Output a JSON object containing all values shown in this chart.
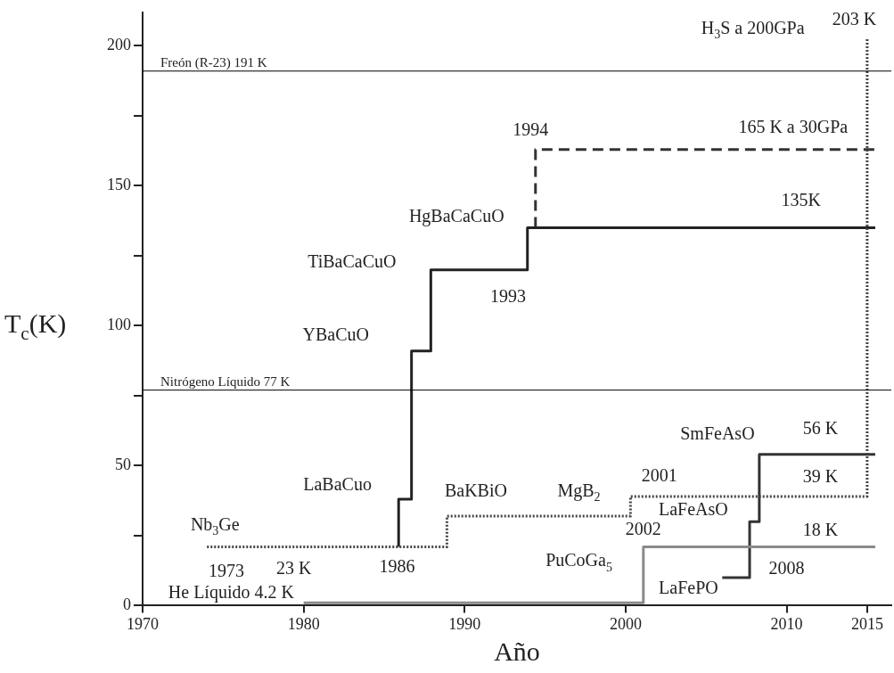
{
  "chart_data": {
    "type": "line",
    "xlabel": "Año",
    "ylabel": "T$_{c}$(K)",
    "xlim": [
      1970,
      2016.5
    ],
    "xticks": [
      1970,
      1980,
      1990,
      2000,
      2010,
      2015
    ],
    "ylim": [
      0,
      212
    ],
    "yticks": [
      0,
      {
        "value": 25,
        "label": null
      },
      50,
      {
        "value": 75,
        "label": null
      },
      100,
      {
        "value": 125,
        "label": null
      },
      150,
      {
        "value": 175,
        "label": null
      },
      200
    ],
    "grid": false,
    "marker": "none",
    "series": [
      {
        "color": "#444444",
        "line_style": "dotted",
        "x": [
          1974,
          1988.9,
          1988.9,
          2000.3,
          2000.3,
          2015,
          2015
        ],
        "values": [
          21,
          21,
          32,
          32,
          39,
          39,
          203
        ]
      },
      {
        "color": "#8a8a8a",
        "line_style": "solid",
        "x": [
          1980,
          2001.1,
          2001.1,
          2015.5
        ],
        "values": [
          1,
          1,
          21,
          21
        ]
      },
      {
        "color": "#222222",
        "line_style": "solid",
        "x": [
          1985.9,
          1985.9,
          1986.7,
          1986.7,
          1987.9,
          1987.9,
          1993.9,
          1993.9,
          2015.5
        ],
        "values": [
          21,
          38,
          38,
          91,
          91,
          120,
          120,
          135,
          135
        ]
      },
      {
        "color": "#333333",
        "line_style": "dashed",
        "x": [
          1994.4,
          1994.4,
          2015.5
        ],
        "values": [
          135,
          163,
          163
        ]
      },
      {
        "color": "#333333",
        "line_style": "solid",
        "x": [
          2006,
          2007.7,
          2007.7,
          2008.3,
          2008.3,
          2015.5
        ],
        "values": [
          10,
          10,
          30,
          30,
          54,
          54
        ]
      }
    ],
    "ref_lines": [
      {
        "axis": "y",
        "value": 191,
        "label": "Freón (R-23) 191 K",
        "color": "#000000"
      },
      {
        "axis": "y",
        "value": 77,
        "label": "Nitrógeno Líquido 77 K",
        "color": "#000000"
      }
    ],
    "annotations": [
      "He Líquido 4.2 K",
      "Nb$_{3}$Ge",
      "1973",
      "23 K",
      "1986",
      "LaBaCuo",
      "BaKBiO",
      "MgB$_{2}$",
      "2001",
      "LaFeAsO",
      "2002",
      "PuCoGa$_{5}$",
      "LaFePO",
      "2008",
      "SmFeAsO",
      "56 K",
      "39 K",
      "18 K",
      "YBaCuO",
      "TiBaCaCuO",
      "1993",
      "HgBaCaCuO",
      "1994",
      "135K",
      "165 K a 30GPa",
      "H$_{3}$S a 200GPa",
      "203 K"
    ]
  }
}
